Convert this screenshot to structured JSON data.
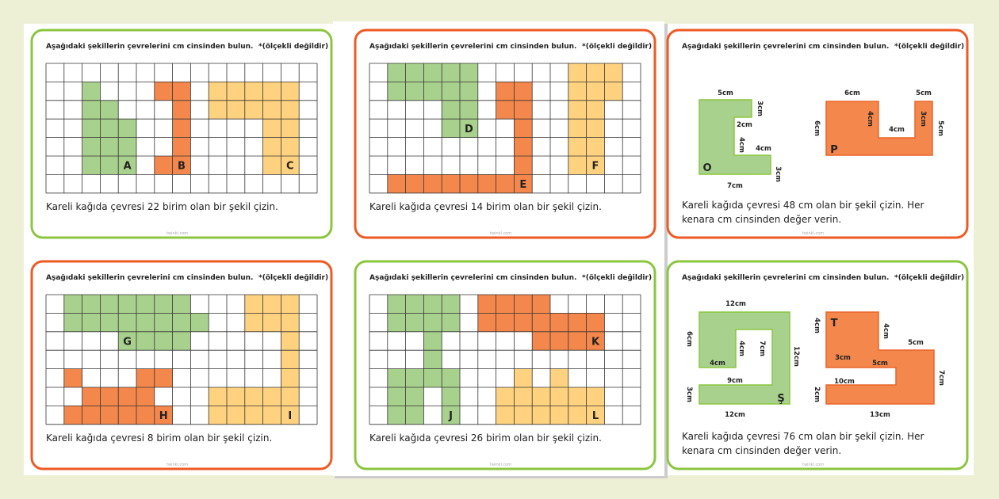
{
  "cards": [
    {
      "title": "Aşağıdaki şekillerin çevrelerini cm cinsinden bulun.",
      "note": "*(ölçekli değildir)",
      "letters": [
        "A",
        "B",
        "C"
      ],
      "prompt": "Kareli kağıda çevresi 22 birim olan bir şekil çizin."
    },
    {
      "title": "Aşağıdaki şekillerin çevrelerini cm cinsinden bulun.",
      "note": "*(ölçekli değildir)",
      "letters": [
        "D",
        "E",
        "F"
      ],
      "prompt": "Kareli kağıda çevresi 14 birim olan bir şekil çizin."
    },
    {
      "title": "Aşağıdaki şekillerin çevrelerini cm cinsinden bulun.",
      "note": "*(ölçekli değildir)",
      "shapes": [
        {
          "letter": "O",
          "labels": [
            "5cm",
            "3cm",
            "2cm",
            "4cm",
            "4cm",
            "3cm",
            "7cm"
          ]
        },
        {
          "letter": "P",
          "labels": [
            "6cm",
            "6cm",
            "4cm",
            "4cm",
            "3cm",
            "5cm",
            "5cm"
          ]
        }
      ],
      "prompt": "Kareli kağıda çevresi 48 cm olan bir şekil çizin. Her kenara cm cinsinden değer verin."
    },
    {
      "title": "Aşağıdaki şekillerin çevrelerini cm cinsinden bulun.",
      "note": "*(ölçekli değildir)",
      "letters": [
        "G",
        "H",
        "I"
      ],
      "prompt": "Kareli kağıda çevresi 8 birim olan bir şekil çizin."
    },
    {
      "title": "Aşağıdaki şekillerin çevrelerini cm cinsinden bulun.",
      "note": "*(ölçekli değildir)",
      "letters": [
        "J",
        "K",
        "L"
      ],
      "prompt": "Kareli kağıda çevresi 26 birim olan bir şekil çizin."
    },
    {
      "title": "Aşağıdaki şekillerin çevrelerini cm cinsinden bulun.",
      "note": "*(ölçekli değildir)",
      "shapes": [
        {
          "letter": "Ş",
          "labels": [
            "12cm",
            "6cm",
            "4cm",
            "7cm",
            "12cm",
            "4cm",
            "9cm",
            "3cm",
            "12cm"
          ]
        },
        {
          "letter": "T",
          "labels": [
            "4cm",
            "4cm",
            "5cm",
            "3cm",
            "5cm",
            "7cm",
            "10cm",
            "2cm",
            "13cm"
          ]
        }
      ],
      "prompt": "Kareli kağıda çevresi 76 cm olan bir şekil çizin. Her kenara cm cinsinden değer verin."
    }
  ],
  "watermark": "twinkl.com"
}
